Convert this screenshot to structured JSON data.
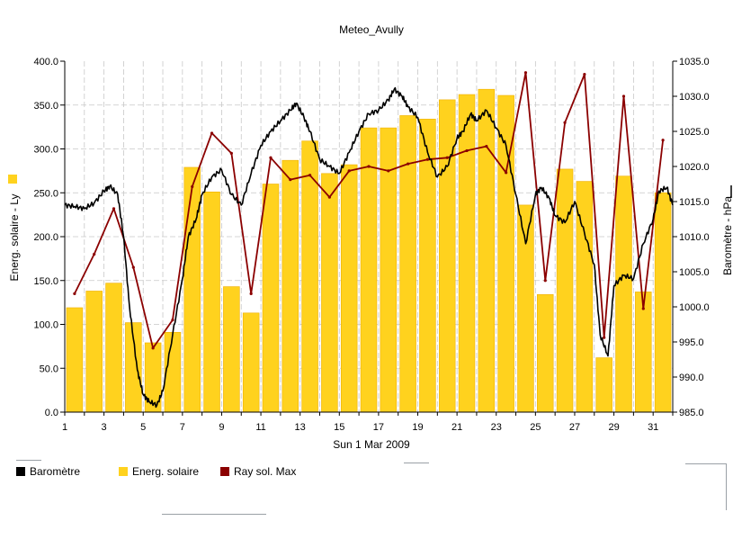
{
  "chart_data": {
    "type": "bar",
    "title": "Meteo_Avully",
    "xlabel": "Sun 1 Mar 2009",
    "ylabel_left": "Energ. solaire - Ly",
    "ylabel_right": "Baromètre - hPa",
    "x_range": [
      1,
      32
    ],
    "x_ticks": [
      1,
      3,
      5,
      7,
      9,
      11,
      13,
      15,
      17,
      19,
      21,
      23,
      25,
      27,
      29,
      31
    ],
    "y_left": {
      "range": [
        0,
        400
      ],
      "ticks": [
        "0.0",
        "50.0",
        "100.0",
        "150.0",
        "200.0",
        "250.0",
        "300.0",
        "350.0",
        "400.0"
      ]
    },
    "y_right": {
      "range": [
        985,
        1035
      ],
      "ticks": [
        "985.0",
        "990.0",
        "995.0",
        "1000.0",
        "1005.0",
        "1010.0",
        "1015.0",
        "1020.0",
        "1025.0",
        "1030.0",
        "1035.0"
      ]
    },
    "grid": true,
    "legend_position": "bottom-left",
    "colors": {
      "barometre": "#000000",
      "energ": "#FFD21E",
      "energ_edge": "#F0B000",
      "ray": "#8B0000",
      "grid": "#c8c8c8"
    },
    "series": [
      {
        "name": "Energ. solaire",
        "axis": "left",
        "kind": "bar",
        "x": [
          1.5,
          2.5,
          3.5,
          4.5,
          5.5,
          6.5,
          7.5,
          8.5,
          9.5,
          10.5,
          11.5,
          12.5,
          13.5,
          14.5,
          15.5,
          16.5,
          17.5,
          18.5,
          19.5,
          20.5,
          21.5,
          22.5,
          23.5,
          24.5,
          25.5,
          26.5,
          27.5,
          28.5,
          29.5,
          30.5,
          31.5
        ],
        "values": [
          119,
          138,
          147,
          102,
          79,
          91,
          279,
          251,
          143,
          113,
          260,
          287,
          309,
          272,
          282,
          324,
          324,
          338,
          334,
          356,
          362,
          368,
          361,
          236,
          134,
          277,
          263,
          62,
          269,
          137,
          250
        ]
      },
      {
        "name": "Ray sol. Max",
        "axis": "left",
        "kind": "line",
        "x": [
          1.5,
          2.5,
          3.5,
          4.5,
          5.5,
          6.5,
          7.5,
          8.5,
          9.5,
          10.5,
          11.5,
          12.5,
          13.5,
          14.5,
          15.5,
          16.5,
          17.5,
          18.5,
          19.5,
          20.5,
          21.5,
          22.5,
          23.5,
          24.5,
          25.5,
          26.5,
          27.5,
          28.5,
          29.5,
          30.5,
          31.5
        ],
        "values": [
          135,
          180,
          232,
          165,
          73,
          105,
          257,
          318,
          295,
          135,
          290,
          265,
          270,
          245,
          275,
          280,
          275,
          283,
          288,
          290,
          298,
          303,
          273,
          387,
          150,
          330,
          385,
          85,
          360,
          118,
          310
        ]
      },
      {
        "name": "Baromètre",
        "axis": "right",
        "kind": "line",
        "x": [
          1,
          1.5,
          2,
          2.5,
          3,
          3.3,
          3.7,
          4,
          4.3,
          4.7,
          5,
          5.3,
          5.7,
          6,
          6.5,
          7,
          7.3,
          7.7,
          8,
          8.5,
          9,
          9.5,
          10,
          10.5,
          11,
          11.5,
          12,
          12.5,
          12.8,
          13.2,
          13.5,
          14,
          14.5,
          15,
          15.5,
          16,
          16.5,
          17,
          17.5,
          17.8,
          18.2,
          18.5,
          19,
          19.5,
          20,
          20.5,
          21,
          21.3,
          21.7,
          22,
          22.5,
          23,
          23.5,
          24,
          24.5,
          25,
          25.3,
          25.7,
          26,
          26.5,
          27,
          27.5,
          28,
          28.3,
          28.7,
          29,
          29.5,
          30,
          30.5,
          31,
          31.3,
          31.7,
          32
        ],
        "values": [
          1014.5,
          1014.3,
          1014.0,
          1014.8,
          1016.5,
          1017.2,
          1016.0,
          1010.0,
          1000.0,
          991.0,
          987.5,
          986.5,
          986.0,
          988.0,
          996.0,
          1004.0,
          1010.0,
          1012.5,
          1016.0,
          1018.5,
          1019.5,
          1016.0,
          1014.5,
          1019.0,
          1023.0,
          1025.0,
          1026.5,
          1028.0,
          1029.0,
          1027.0,
          1025.0,
          1021.0,
          1020.0,
          1019.0,
          1022.0,
          1025.0,
          1027.5,
          1028.0,
          1029.5,
          1031.0,
          1030.0,
          1028.5,
          1027.0,
          1022.0,
          1018.5,
          1020.0,
          1024.0,
          1025.0,
          1027.5,
          1026.5,
          1028.0,
          1025.5,
          1023.0,
          1016.0,
          1009.0,
          1016.0,
          1017.0,
          1015.5,
          1013.0,
          1012.0,
          1015.0,
          1010.5,
          1006.0,
          996.0,
          993.0,
          1003.0,
          1004.5,
          1004.0,
          1009.0,
          1012.5,
          1016.5,
          1017.0,
          1014.5
        ]
      }
    ]
  }
}
